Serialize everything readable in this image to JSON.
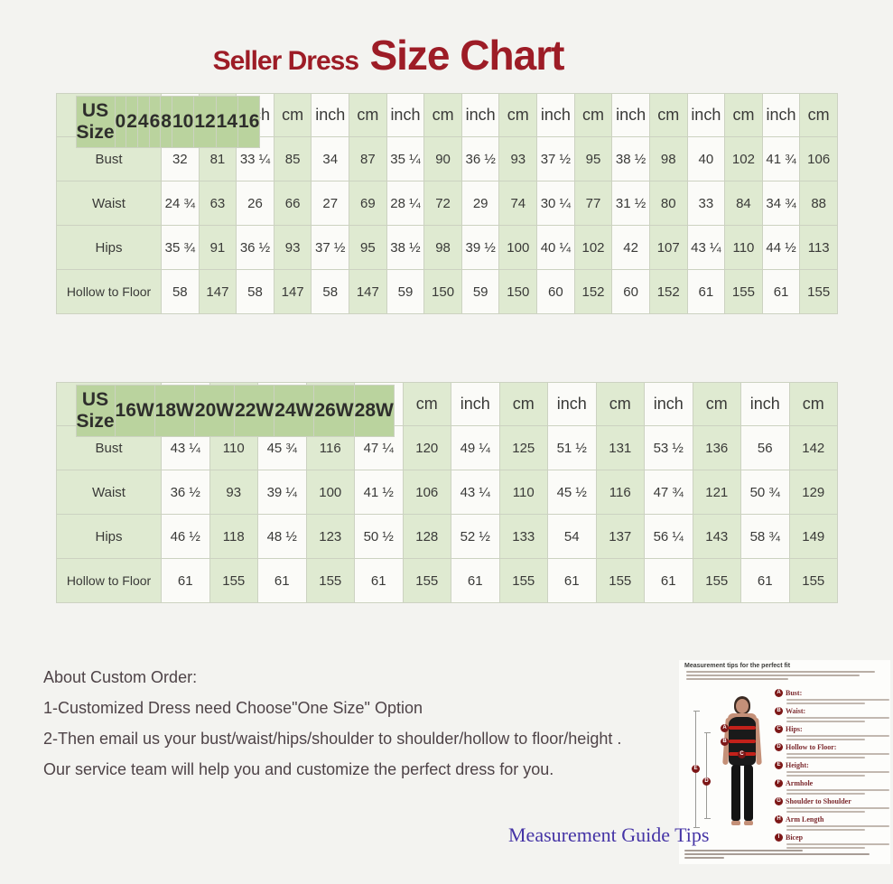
{
  "title": {
    "prefix": "Seller Dress",
    "main": "Size Chart"
  },
  "tables": [
    {
      "name": "standard-sizes",
      "corner_label": "US Size",
      "sizes": [
        "0",
        "2",
        "4",
        "6",
        "8",
        "10",
        "12",
        "14",
        "16"
      ],
      "unit_inch": "inch",
      "unit_cm": "cm",
      "rows": [
        {
          "label": "Bust",
          "values": [
            "32",
            "81",
            "33 ¼",
            "85",
            "34",
            "87",
            "35 ¼",
            "90",
            "36 ½",
            "93",
            "37 ½",
            "95",
            "38 ½",
            "98",
            "40",
            "102",
            "41 ¾",
            "106"
          ]
        },
        {
          "label": "Waist",
          "values": [
            "24 ¾",
            "63",
            "26",
            "66",
            "27",
            "69",
            "28 ¼",
            "72",
            "29",
            "74",
            "30 ¼",
            "77",
            "31 ½",
            "80",
            "33",
            "84",
            "34 ¾",
            "88"
          ]
        },
        {
          "label": "Hips",
          "values": [
            "35 ¾",
            "91",
            "36 ½",
            "93",
            "37 ½",
            "95",
            "38 ½",
            "98",
            "39 ½",
            "100",
            "40 ¼",
            "102",
            "42",
            "107",
            "43 ¼",
            "110",
            "44 ½",
            "113"
          ]
        },
        {
          "label": "Hollow to Floor",
          "values": [
            "58",
            "147",
            "58",
            "147",
            "58",
            "147",
            "59",
            "150",
            "59",
            "150",
            "60",
            "152",
            "60",
            "152",
            "61",
            "155",
            "61",
            "155"
          ]
        }
      ]
    },
    {
      "name": "plus-sizes",
      "corner_label": "US Size",
      "sizes": [
        "16W",
        "18W",
        "20W",
        "22W",
        "24W",
        "26W",
        "28W"
      ],
      "unit_inch": "inch",
      "unit_cm": "cm",
      "rows": [
        {
          "label": "Bust",
          "values": [
            "43 ¼",
            "110",
            "45 ¾",
            "116",
            "47 ¼",
            "120",
            "49 ¼",
            "125",
            "51 ½",
            "131",
            "53 ½",
            "136",
            "56",
            "142"
          ]
        },
        {
          "label": "Waist",
          "values": [
            "36 ½",
            "93",
            "39 ¼",
            "100",
            "41 ½",
            "106",
            "43 ¼",
            "110",
            "45 ½",
            "116",
            "47 ¾",
            "121",
            "50 ¾",
            "129"
          ]
        },
        {
          "label": "Hips",
          "values": [
            "46 ½",
            "118",
            "48 ½",
            "123",
            "50 ½",
            "128",
            "52 ½",
            "133",
            "54",
            "137",
            "56 ¼",
            "143",
            "58 ¾",
            "149"
          ]
        },
        {
          "label": "Hollow to Floor",
          "values": [
            "61",
            "155",
            "61",
            "155",
            "61",
            "155",
            "61",
            "155",
            "61",
            "155",
            "61",
            "155",
            "61",
            "155"
          ]
        }
      ]
    }
  ],
  "custom_order": {
    "heading": "About Custom Order:",
    "lines": [
      "1-Customized Dress need Choose\"One Size\" Option",
      "2-Then email us your bust/waist/hips/shoulder to shoulder/hollow to floor/height .",
      "Our service team will help you and customize the perfect dress for you."
    ]
  },
  "guide_tips_label": "Measurement Guide Tips",
  "guide_panel": {
    "title": "Measurement tips for the perfect fit",
    "items": [
      {
        "letter": "A",
        "label": "Bust:"
      },
      {
        "letter": "B",
        "label": "Waist:"
      },
      {
        "letter": "C",
        "label": "Hips:"
      },
      {
        "letter": "D",
        "label": "Hollow to Floor:"
      },
      {
        "letter": "E",
        "label": "Height:"
      },
      {
        "letter": "F",
        "label": "Armhole"
      },
      {
        "letter": "G",
        "label": "Shoulder to Shoulder"
      },
      {
        "letter": "H",
        "label": "Arm Length"
      },
      {
        "letter": "I",
        "label": "Bicep"
      }
    ]
  },
  "colors": {
    "title_red": "#9d1c26",
    "header_green": "#bad39e",
    "cell_green": "#dfead1",
    "cell_white": "#fbfbf8",
    "grid_line": "#ccd2c1",
    "link_purple": "#4534a6",
    "body_text": "#4e4347"
  }
}
